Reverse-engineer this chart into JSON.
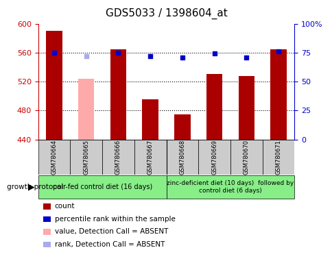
{
  "title": "GDS5033 / 1398604_at",
  "samples": [
    "GSM780664",
    "GSM780665",
    "GSM780666",
    "GSM780667",
    "GSM780668",
    "GSM780669",
    "GSM780670",
    "GSM780671"
  ],
  "bar_values": [
    590,
    524,
    565,
    495,
    475,
    530,
    528,
    565
  ],
  "bar_colors": [
    "#aa0000",
    "#ffaaaa",
    "#aa0000",
    "#aa0000",
    "#aa0000",
    "#aa0000",
    "#aa0000",
    "#aa0000"
  ],
  "percentile_values": [
    75,
    72,
    75,
    72,
    71,
    74,
    71,
    76
  ],
  "percentile_colors": [
    "#0000cc",
    "#aaaaee",
    "#0000cc",
    "#0000cc",
    "#0000cc",
    "#0000cc",
    "#0000cc",
    "#0000cc"
  ],
  "ylim_left": [
    440,
    600
  ],
  "ylim_right": [
    0,
    100
  ],
  "yticks_left": [
    440,
    480,
    520,
    560,
    600
  ],
  "yticks_right": [
    0,
    25,
    50,
    75,
    100
  ],
  "ytick_labels_right": [
    "0",
    "25",
    "50",
    "75",
    "100%"
  ],
  "group1_label": "pair-fed control diet (16 days)",
  "group2_label": "zinc-deficient diet (10 days)  followed by\ncontrol diet (6 days)",
  "protocol_label": "growth protocol",
  "legend_items": [
    {
      "label": "count",
      "color": "#aa0000"
    },
    {
      "label": "percentile rank within the sample",
      "color": "#0000cc"
    },
    {
      "label": "value, Detection Call = ABSENT",
      "color": "#ffaaaa"
    },
    {
      "label": "rank, Detection Call = ABSENT",
      "color": "#aaaaee"
    }
  ],
  "bar_width": 0.5,
  "title_fontsize": 11,
  "tick_fontsize": 8,
  "yaxis_left_color": "#cc0000",
  "yaxis_right_color": "#0000cc"
}
